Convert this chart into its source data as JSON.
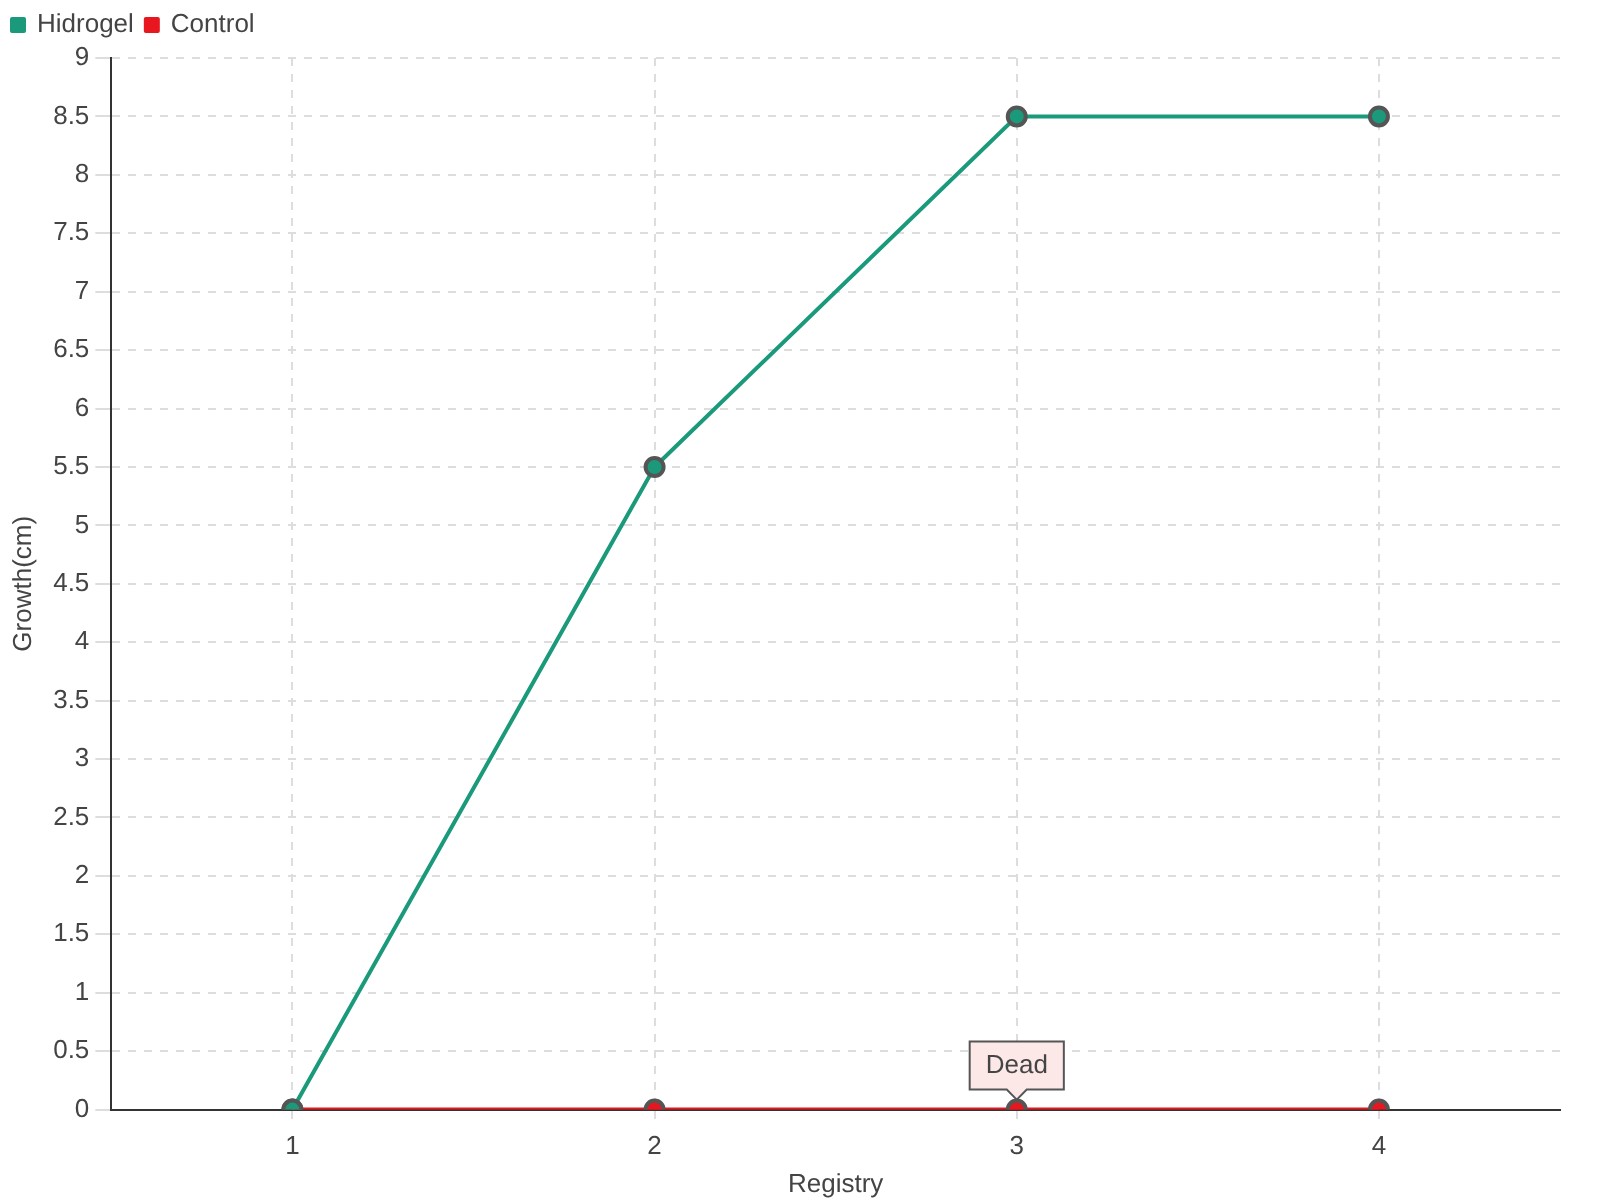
{
  "chart_data": {
    "type": "line",
    "xlabel": "Registry",
    "ylabel": "Growth(cm)",
    "categories": [
      "1",
      "2",
      "3",
      "4"
    ],
    "series": [
      {
        "name": "Hidrogel",
        "color": "#1a9a7a",
        "values": [
          0,
          5.5,
          8.5,
          8.5
        ]
      },
      {
        "name": "Control",
        "color": "#e8161e",
        "values": [
          0,
          0,
          0,
          0
        ]
      }
    ],
    "ylim": [
      0,
      9
    ],
    "yticks": [
      0,
      0.5,
      1,
      1.5,
      2,
      2.5,
      3,
      3.5,
      4,
      4.5,
      5,
      5.5,
      6,
      6.5,
      7,
      7.5,
      8,
      8.5,
      9
    ],
    "grid": true,
    "legend": "top left",
    "marker": "circle",
    "line_style": "solid",
    "annotations": [
      {
        "text": "Dead",
        "x": "3",
        "y": 0
      }
    ]
  }
}
